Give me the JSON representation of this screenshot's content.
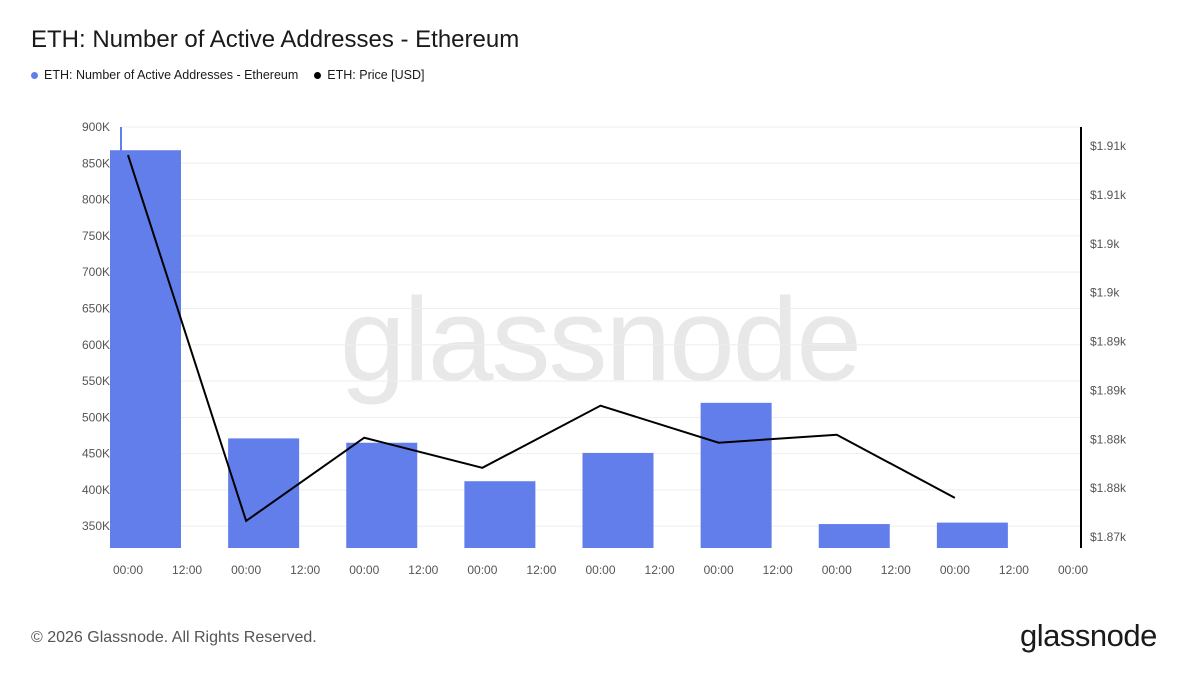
{
  "header": {
    "title": "ETH: Number of Active Addresses - Ethereum"
  },
  "legend": [
    {
      "label": "ETH: Number of Active Addresses - Ethereum",
      "color": "#627eea"
    },
    {
      "label": "ETH: Price [USD]",
      "color": "#000000"
    }
  ],
  "watermark": "glassnode",
  "footer": {
    "copyright": "© 2026 Glassnode. All Rights Reserved.",
    "logo": "glassnode"
  },
  "chart_data": {
    "type": "bar",
    "x_tick_labels": [
      "00:00",
      "12:00",
      "00:00",
      "12:00",
      "00:00",
      "12:00",
      "00:00",
      "12:00",
      "00:00",
      "12:00",
      "00:00",
      "12:00",
      "00:00",
      "12:00",
      "00:00",
      "12:00",
      "00:00"
    ],
    "left_axis": {
      "ticks": [
        "900K",
        "850K",
        "800K",
        "750K",
        "700K",
        "650K",
        "600K",
        "550K",
        "500K",
        "450K",
        "400K",
        "350K"
      ],
      "ylim": [
        320000,
        900000
      ]
    },
    "right_axis": {
      "ticks": [
        "$1.91k",
        "$1.91k",
        "$1.9k",
        "$1.9k",
        "$1.89k",
        "$1.89k",
        "$1.88k",
        "$1.88k",
        "$1.87k"
      ],
      "ylim": [
        1870,
        1912
      ]
    },
    "grid": true,
    "series": [
      {
        "name": "ETH: Number of Active Addresses - Ethereum",
        "type": "bar",
        "axis": "left",
        "color": "#627eea",
        "values": [
          868000,
          471000,
          465000,
          412000,
          451000,
          520000,
          353000,
          355000
        ]
      },
      {
        "name": "ETH: Price [USD]",
        "type": "line",
        "axis": "right",
        "color": "#000000",
        "values": [
          1909.2,
          1872.7,
          1881.0,
          1878.0,
          1884.2,
          1880.5,
          1881.3,
          1875.0
        ]
      }
    ]
  }
}
